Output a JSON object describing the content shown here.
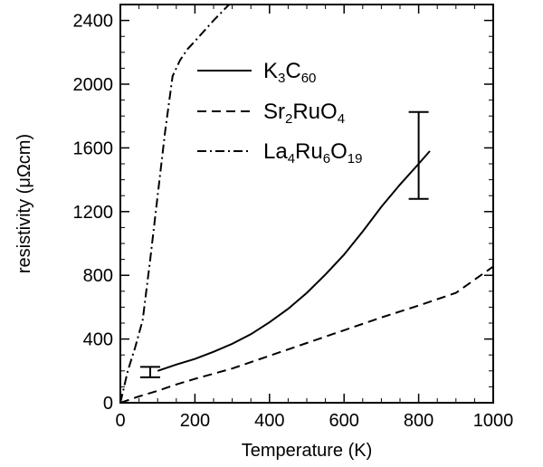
{
  "chart_data": {
    "type": "line",
    "xlabel": "Temperature (K)",
    "ylabel": "resistivity (μΩcm)",
    "xlim": [
      0,
      1000
    ],
    "ylim": [
      0,
      2500
    ],
    "xticks": [
      0,
      200,
      400,
      600,
      800,
      1000
    ],
    "yticks": [
      0,
      400,
      800,
      1200,
      1600,
      2000,
      2400
    ],
    "minor_ticks": true,
    "legend_position": "top-right",
    "series": [
      {
        "name": "K3C60",
        "name_parts": [
          {
            "t": "K"
          },
          {
            "t": "3",
            "sub": true
          },
          {
            "t": "C"
          },
          {
            "t": "60",
            "sub": true
          }
        ],
        "style": "solid",
        "x": [
          100,
          150,
          200,
          250,
          300,
          350,
          400,
          450,
          500,
          550,
          600,
          650,
          700,
          750,
          800,
          830
        ],
        "y": [
          200,
          240,
          275,
          320,
          370,
          430,
          505,
          590,
          690,
          805,
          930,
          1075,
          1230,
          1370,
          1500,
          1580
        ]
      },
      {
        "name": "Sr2RuO4",
        "name_parts": [
          {
            "t": "Sr"
          },
          {
            "t": "2",
            "sub": true
          },
          {
            "t": "RuO"
          },
          {
            "t": "4",
            "sub": true
          }
        ],
        "style": "dashed",
        "x": [
          0,
          50,
          100,
          150,
          200,
          300,
          400,
          500,
          600,
          700,
          800,
          900,
          1000
        ],
        "y": [
          0,
          40,
          75,
          115,
          150,
          215,
          295,
          375,
          455,
          535,
          610,
          690,
          855
        ]
      },
      {
        "name": "La4Ru6O19",
        "name_parts": [
          {
            "t": "La"
          },
          {
            "t": "4",
            "sub": true
          },
          {
            "t": "Ru"
          },
          {
            "t": "6",
            "sub": true
          },
          {
            "t": "O"
          },
          {
            "t": "19",
            "sub": true
          }
        ],
        "style": "dashdot",
        "x": [
          0,
          20,
          40,
          60,
          80,
          100,
          120,
          140,
          160,
          180,
          200,
          250,
          300
        ],
        "y": [
          0,
          200,
          350,
          520,
          900,
          1300,
          1700,
          2050,
          2150,
          2220,
          2270,
          2400,
          2520
        ]
      }
    ],
    "error_bars": [
      {
        "x": 800,
        "y_low": 1280,
        "y_high": 1825
      },
      {
        "x": 80,
        "y_low": 160,
        "y_high": 225
      }
    ]
  }
}
